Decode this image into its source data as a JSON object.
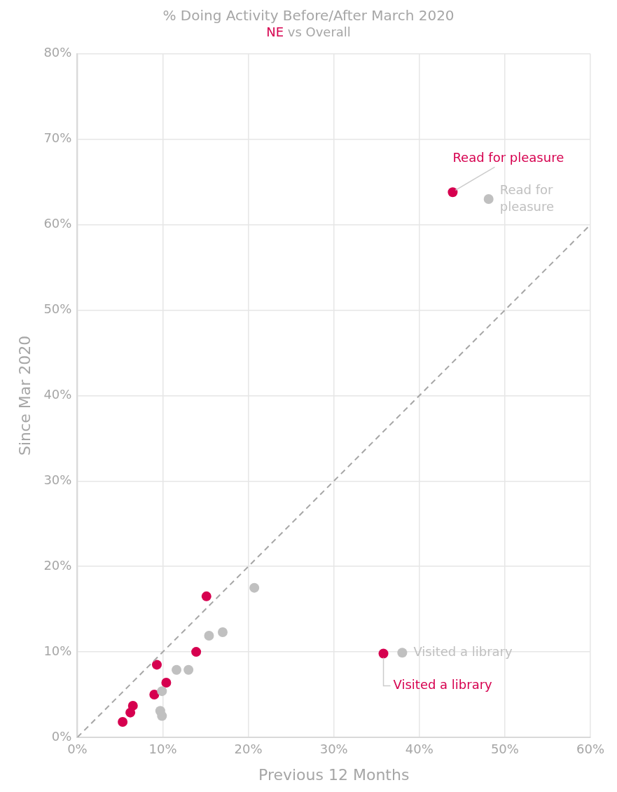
{
  "chart_data": {
    "type": "scatter",
    "title": "% Doing Activity Before/After March 2020",
    "subtitle": "NE vs Overall",
    "xlabel": "Previous 12 Months",
    "ylabel": "Since Mar 2020",
    "xlim": [
      0,
      60
    ],
    "ylim": [
      0,
      80
    ],
    "xticks": [
      {
        "value": 0,
        "label": "0%"
      },
      {
        "value": 10,
        "label": "10%"
      },
      {
        "value": 20,
        "label": "20%"
      },
      {
        "value": 30,
        "label": "30%"
      },
      {
        "value": 40,
        "label": "40%"
      },
      {
        "value": 50,
        "label": "50%"
      },
      {
        "value": 60,
        "label": "60%"
      }
    ],
    "yticks": [
      {
        "value": 0,
        "label": "0%"
      },
      {
        "value": 10,
        "label": "10%"
      },
      {
        "value": 20,
        "label": "20%"
      },
      {
        "value": 30,
        "label": "30%"
      },
      {
        "value": 40,
        "label": "40%"
      },
      {
        "value": 50,
        "label": "50%"
      },
      {
        "value": 60,
        "label": "60%"
      },
      {
        "value": 70,
        "label": "70%"
      },
      {
        "value": 80,
        "label": "80%"
      }
    ],
    "grid": true,
    "legend": false,
    "marker": "circle",
    "series": [
      {
        "type": "line",
        "color": "#a6a6a6",
        "line_style": "dashed",
        "marker": "none",
        "x": [
          0,
          60
        ],
        "values": [
          0,
          60
        ]
      },
      {
        "color": "#c0c0c0",
        "x": [
          48.1,
          20.7,
          15.4,
          17.0,
          11.6,
          13.0,
          9.9,
          9.7,
          9.9,
          38.0
        ],
        "values": [
          63.0,
          17.5,
          11.9,
          12.3,
          7.9,
          7.9,
          5.4,
          3.1,
          2.5,
          9.9
        ]
      },
      {
        "color": "#d6004f",
        "x": [
          43.9,
          15.1,
          13.9,
          9.3,
          10.4,
          9.0,
          6.5,
          6.2,
          5.3,
          35.8
        ],
        "values": [
          63.8,
          16.5,
          10.0,
          8.5,
          6.4,
          5.0,
          3.7,
          2.9,
          1.8,
          9.8
        ]
      }
    ],
    "annotations": [
      {
        "text": "Read for pleasure",
        "x": 43.9,
        "y": 63.8
      },
      {
        "text": "Read for pleasure",
        "x": 48.1,
        "y": 63.0
      },
      {
        "text": "Visited a library",
        "x": 38.0,
        "y": 9.9
      },
      {
        "text": "Visited a library",
        "x": 35.8,
        "y": 9.8
      }
    ]
  }
}
